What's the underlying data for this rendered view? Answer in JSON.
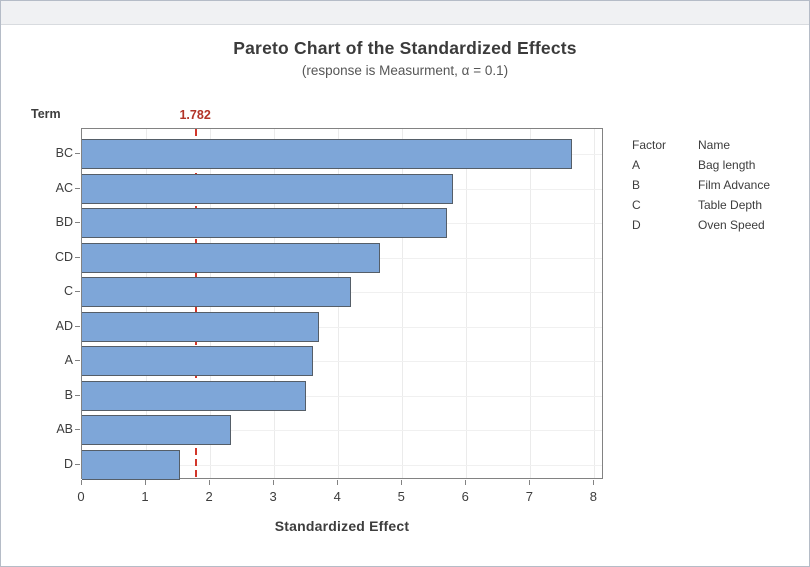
{
  "window": {
    "titlebar": ""
  },
  "chart": {
    "title": "Pareto Chart of the Standardized Effects",
    "subtitle": "(response is Measurment, α = 0.1)",
    "y_axis_title": "Term",
    "x_axis_title": "Standardized Effect",
    "reference_line": {
      "value": 1.782,
      "label": "1.782"
    }
  },
  "chart_data": {
    "type": "bar",
    "orientation": "horizontal",
    "title": "Pareto Chart of the Standardized Effects",
    "subtitle": "(response is Measurment, α = 0.1)",
    "xlabel": "Standardized Effect",
    "ylabel": "Term",
    "categories": [
      "BC",
      "AC",
      "BD",
      "CD",
      "C",
      "AD",
      "A",
      "B",
      "AB",
      "D"
    ],
    "values": [
      7.65,
      5.8,
      5.7,
      4.65,
      4.2,
      3.7,
      3.6,
      3.5,
      2.33,
      1.53
    ],
    "xlim": [
      0,
      8.15
    ],
    "x_ticks": [
      0,
      1,
      2,
      3,
      4,
      5,
      6,
      7,
      8
    ],
    "reference_line": 1.782,
    "grid": true,
    "legend_position": "right",
    "bar_color": "#7EA6D8",
    "bar_border_color": "#555E68",
    "reference_line_color": "#D2362A",
    "reference_label_color": "#B23327"
  },
  "legend": {
    "headers": [
      "Factor",
      "Name"
    ],
    "rows": [
      {
        "factor": "A",
        "name": "Bag length"
      },
      {
        "factor": "B",
        "name": "Film Advance"
      },
      {
        "factor": "C",
        "name": "Table Depth"
      },
      {
        "factor": "D",
        "name": "Oven Speed"
      }
    ]
  }
}
